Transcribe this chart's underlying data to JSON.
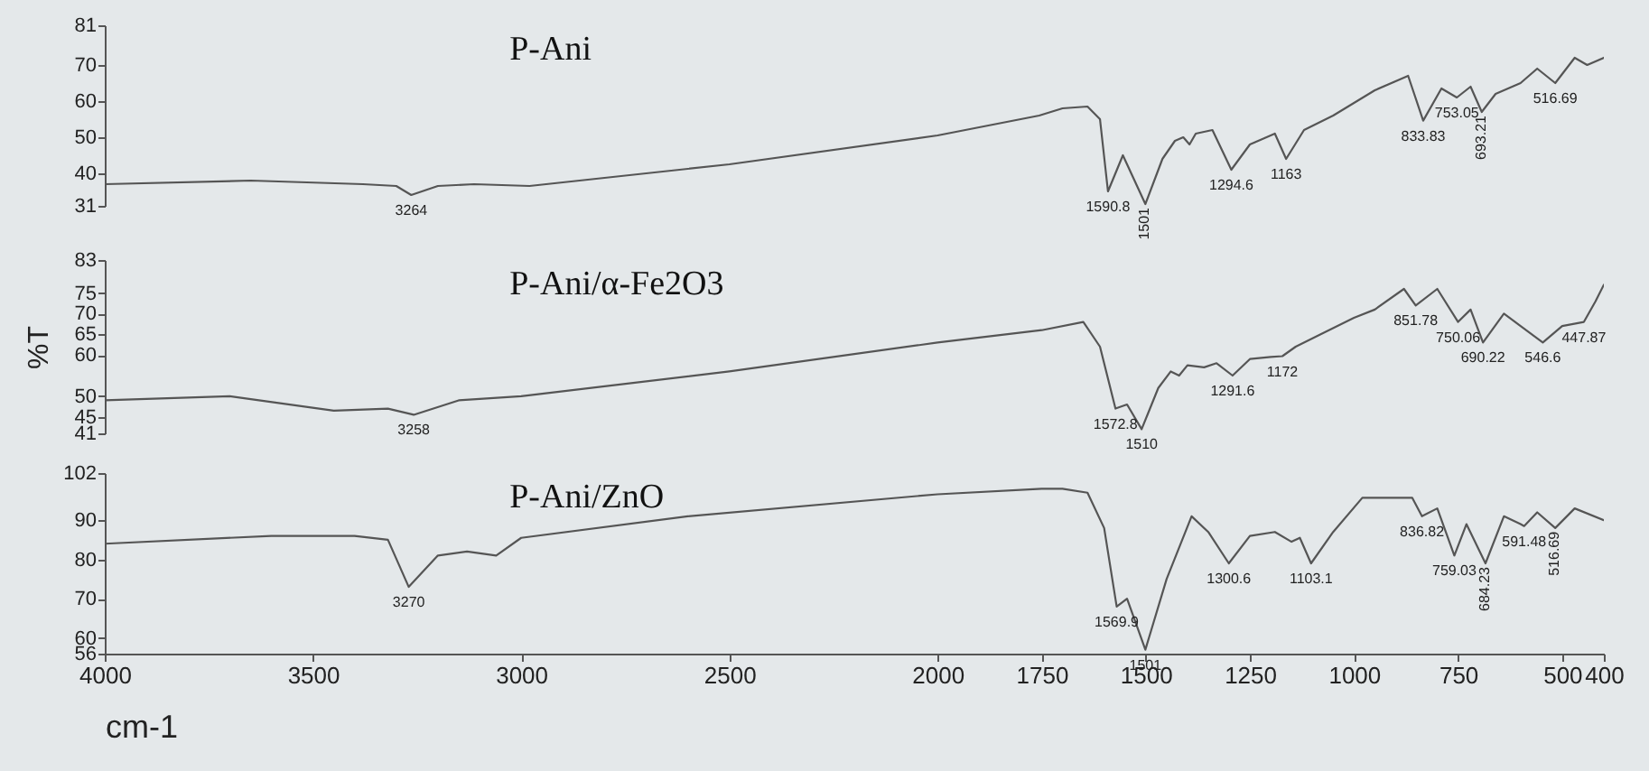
{
  "chart_data": [
    {
      "type": "line",
      "xlim": [
        4000,
        400
      ],
      "ylim": [
        31,
        81
      ],
      "yticks": [
        31,
        40,
        50,
        60,
        70,
        81
      ],
      "tick_labels": "y",
      "series": [
        {
          "name": "P-Ani",
          "color": "#555555",
          "x": [
            4000,
            3650,
            3380,
            3300,
            3264,
            3200,
            3113,
            2980,
            2500,
            2000,
            1756,
            1700,
            1640,
            1610,
            1590.8,
            1555,
            1501,
            1460,
            1430,
            1410,
            1395,
            1380,
            1340,
            1294.6,
            1250,
            1190,
            1163,
            1120,
            1050,
            950,
            870,
            833.83,
            790,
            753.05,
            720,
            693.21,
            660,
            600,
            560,
            516.69,
            470,
            440,
            400
          ],
          "values": [
            37,
            38,
            37,
            36.5,
            34,
            36.5,
            37,
            36.5,
            42.5,
            50.5,
            56,
            58,
            58.5,
            55,
            35,
            45,
            31.5,
            44,
            49,
            50,
            48,
            51,
            52,
            41,
            48,
            51,
            44,
            52,
            56,
            63,
            67,
            54.6,
            63.5,
            61,
            64,
            57,
            62,
            65,
            69,
            65,
            72,
            70,
            72
          ]
        }
      ],
      "annotations": [
        {
          "text": "3264",
          "x": 3264,
          "y": 34
        },
        {
          "text": "1590.8",
          "x": 1590.8,
          "y": 35
        },
        {
          "text": "1501",
          "x": 1501,
          "y": 31.5
        },
        {
          "text": "1294.6",
          "x": 1294.6,
          "y": 41
        },
        {
          "text": "1163",
          "x": 1163,
          "y": 44
        },
        {
          "text": "833.83",
          "x": 833.83,
          "y": 54.6
        },
        {
          "text": "753.05",
          "x": 753.05,
          "y": 61
        },
        {
          "text": "693.21",
          "x": 693.21,
          "y": 57
        },
        {
          "text": "516.69",
          "x": 516.69,
          "y": 65
        }
      ]
    },
    {
      "type": "line",
      "xlim": [
        4000,
        400
      ],
      "ylim": [
        41,
        83
      ],
      "yticks": [
        41,
        45,
        50,
        60,
        65,
        70,
        75,
        83
      ],
      "tick_labels": "y",
      "ylabel": "%T",
      "series": [
        {
          "name": "P-Ani/α-Fe2O3",
          "color": "#555555",
          "x": [
            4000,
            3700,
            3450,
            3320,
            3258,
            3150,
            3000,
            2500,
            2000,
            1750,
            1650,
            1610,
            1572.8,
            1545,
            1510,
            1470,
            1440,
            1420,
            1400,
            1360,
            1330,
            1291.6,
            1250,
            1200,
            1172,
            1140,
            1080,
            1000,
            950,
            880,
            851.78,
            800,
            750.06,
            720,
            690.22,
            640,
            600,
            546.6,
            500,
            447.87,
            420,
            400
          ],
          "values": [
            49,
            50,
            46.5,
            47,
            45.5,
            49,
            50,
            56,
            63,
            66,
            68,
            62,
            47,
            48,
            42,
            52,
            56,
            55,
            57.5,
            57,
            58,
            55,
            59,
            59.5,
            59.7,
            62,
            65,
            69,
            71,
            76,
            72,
            76,
            68,
            71,
            63,
            70,
            67,
            63,
            67,
            68,
            73,
            77
          ]
        }
      ],
      "annotations": [
        {
          "text": "3258",
          "x": 3258,
          "y": 45.5
        },
        {
          "text": "1572.8",
          "x": 1572.8,
          "y": 47
        },
        {
          "text": "1510",
          "x": 1510,
          "y": 42
        },
        {
          "text": "1291.6",
          "x": 1291.6,
          "y": 55
        },
        {
          "text": "1172",
          "x": 1172,
          "y": 59.7
        },
        {
          "text": "851.78",
          "x": 851.78,
          "y": 72
        },
        {
          "text": "750.06",
          "x": 750.06,
          "y": 68
        },
        {
          "text": "690.22",
          "x": 690.22,
          "y": 63
        },
        {
          "text": "546.6",
          "x": 546.6,
          "y": 63
        },
        {
          "text": "447.87",
          "x": 447.87,
          "y": 68
        }
      ]
    },
    {
      "type": "line",
      "xlim": [
        4000,
        400
      ],
      "xticks": [
        4000,
        3500,
        3000,
        2500,
        2000,
        1750,
        1500,
        1250,
        1000,
        750,
        500,
        400
      ],
      "ylim": [
        56,
        102
      ],
      "yticks": [
        56,
        60,
        70,
        80,
        90,
        102
      ],
      "xlabel": "cm-1",
      "series": [
        {
          "name": "P-Ani/ZnO",
          "color": "#555555",
          "x": [
            4000,
            3600,
            3400,
            3320,
            3270,
            3200,
            3130,
            3060,
            3000,
            2600,
            2000,
            1750,
            1700,
            1640,
            1600,
            1569.9,
            1545,
            1501,
            1450,
            1390,
            1350,
            1300.6,
            1250,
            1190,
            1150,
            1130,
            1103.1,
            1050,
            980,
            900,
            860,
            836.82,
            800,
            759.03,
            730,
            684.23,
            640,
            600,
            591.48,
            560,
            516.69,
            470,
            400
          ],
          "values": [
            84,
            86,
            86,
            85,
            73,
            81,
            82,
            81,
            85.5,
            91,
            96.6,
            98,
            98,
            97,
            88,
            68,
            70,
            57,
            75,
            91,
            87,
            79,
            86,
            87,
            84.5,
            85.5,
            79,
            87,
            95.7,
            95.7,
            95.7,
            91,
            93,
            81,
            89,
            79,
            91,
            89,
            88.5,
            92,
            88,
            93,
            90
          ]
        }
      ],
      "annotations": [
        {
          "text": "3270",
          "x": 3270,
          "y": 73
        },
        {
          "text": "1569.9",
          "x": 1569.9,
          "y": 68
        },
        {
          "text": "1501",
          "x": 1501,
          "y": 57
        },
        {
          "text": "1300.6",
          "x": 1300.6,
          "y": 79
        },
        {
          "text": "1103.1",
          "x": 1103.1,
          "y": 79
        },
        {
          "text": "836.82",
          "x": 836.82,
          "y": 91
        },
        {
          "text": "759.03",
          "x": 759.03,
          "y": 81
        },
        {
          "text": "684.23",
          "x": 684.23,
          "y": 79
        },
        {
          "text": "591.48",
          "x": 591.48,
          "y": 88.5
        },
        {
          "text": "516.69",
          "x": 516.69,
          "y": 88
        }
      ]
    }
  ]
}
